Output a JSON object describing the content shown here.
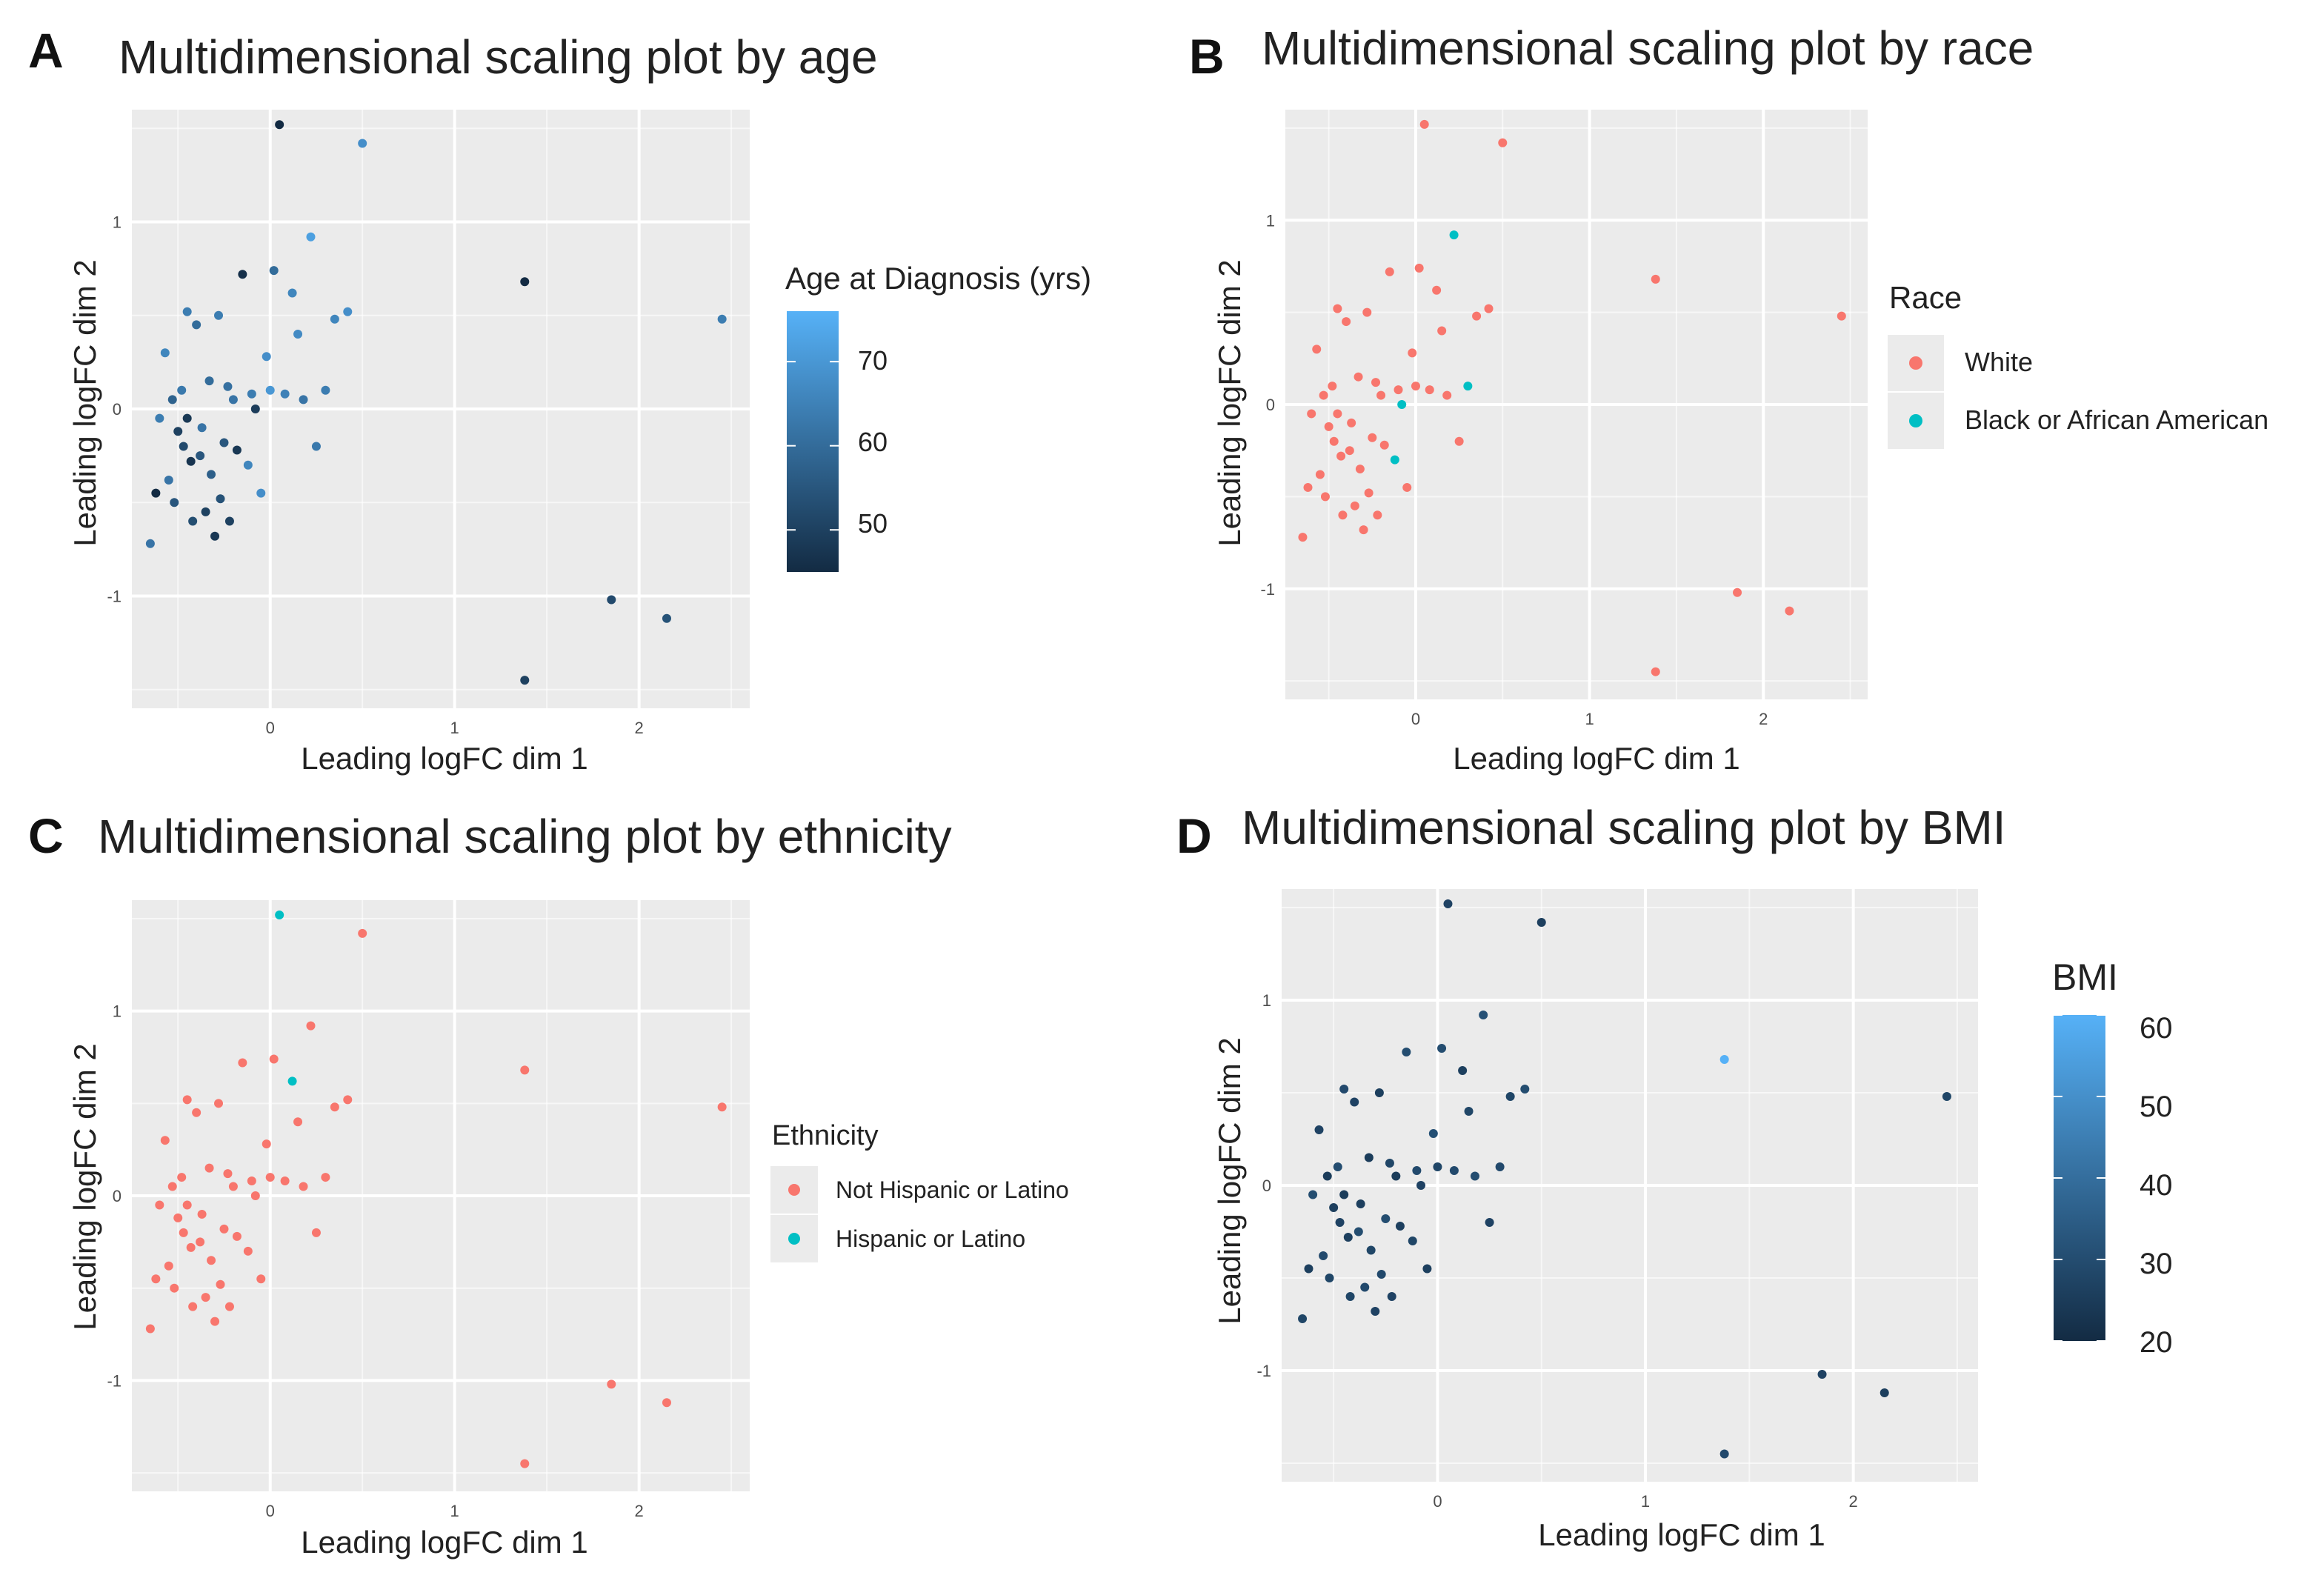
{
  "axis_label_x": "Leading logFC dim 1",
  "axis_label_y": "Leading logFC dim 2",
  "colors": {
    "white": "#f8766d",
    "black": "#00bfc4",
    "grid_bg": "#ebebeb",
    "grid_line": "#ffffff"
  },
  "points": {
    "x": [
      -0.65,
      -0.62,
      -0.6,
      -0.57,
      -0.55,
      -0.53,
      -0.52,
      -0.5,
      -0.48,
      -0.47,
      -0.45,
      -0.45,
      -0.43,
      -0.42,
      -0.4,
      -0.38,
      -0.37,
      -0.35,
      -0.33,
      -0.32,
      -0.3,
      -0.28,
      -0.27,
      -0.25,
      -0.23,
      -0.22,
      -0.2,
      -0.18,
      -0.15,
      -0.12,
      -0.1,
      -0.08,
      -0.05,
      -0.02,
      0.0,
      0.02,
      0.05,
      0.08,
      0.12,
      0.15,
      0.18,
      0.22,
      0.25,
      0.3,
      0.35,
      0.42,
      0.5,
      1.38,
      1.38,
      1.85,
      2.15,
      2.45
    ],
    "y": [
      -0.72,
      -0.45,
      -0.05,
      0.3,
      -0.38,
      0.05,
      -0.5,
      -0.12,
      0.1,
      -0.2,
      -0.05,
      0.52,
      -0.28,
      -0.6,
      0.45,
      -0.25,
      -0.1,
      -0.55,
      0.15,
      -0.35,
      -0.68,
      0.5,
      -0.48,
      -0.18,
      0.12,
      -0.6,
      0.05,
      -0.22,
      0.72,
      -0.3,
      0.08,
      0.0,
      -0.45,
      0.28,
      0.1,
      0.74,
      1.52,
      0.08,
      0.62,
      0.4,
      0.05,
      0.92,
      -0.2,
      0.1,
      0.48,
      0.52,
      1.42,
      -1.45,
      0.68,
      -1.02,
      -1.12,
      0.48
    ]
  },
  "chart_data": [
    {
      "type": "scatter",
      "panel": "A",
      "title": "Multidimensional scaling plot by age",
      "xlabel": "Leading logFC dim 1",
      "ylabel": "Leading logFC dim 2",
      "xlim": [
        -0.75,
        2.6
      ],
      "ylim": [
        -1.6,
        1.6
      ],
      "xticks": [
        0,
        1,
        2
      ],
      "xtick_labels": [
        "0",
        "1",
        "2"
      ],
      "yticks": [
        -1,
        0,
        1
      ],
      "ytick_labels": [
        "-1",
        "0",
        "1"
      ],
      "legend_title": "Age at Diagnosis (yrs)",
      "color_scale": {
        "min": 45,
        "max": 76,
        "ticks": [
          50,
          60,
          70
        ],
        "tick_labels": [
          "50",
          "60",
          "70"
        ],
        "low_color": "#132b43",
        "high_color": "#56b1f7"
      },
      "values": [
        62,
        45,
        64,
        66,
        62,
        58,
        55,
        50,
        63,
        52,
        48,
        64,
        47,
        53,
        60,
        55,
        62,
        50,
        60,
        57,
        48,
        64,
        54,
        55,
        61,
        50,
        62,
        48,
        46,
        66,
        64,
        49,
        68,
        68,
        70,
        60,
        45,
        65,
        66,
        67,
        62,
        72,
        63,
        64,
        66,
        68,
        68,
        50,
        45,
        52,
        54,
        64
      ]
    },
    {
      "type": "scatter",
      "panel": "B",
      "title": "Multidimensional scaling plot by race",
      "xlabel": "Leading logFC dim 1",
      "ylabel": "Leading logFC dim 2",
      "xlim": [
        -0.75,
        2.6
      ],
      "ylim": [
        -1.6,
        1.6
      ],
      "xticks": [
        0,
        1,
        2
      ],
      "xtick_labels": [
        "0",
        "1",
        "2"
      ],
      "yticks": [
        -1,
        0,
        1
      ],
      "ytick_labels": [
        "-1",
        "0",
        "1"
      ],
      "legend_title": "Race",
      "legend": [
        "White",
        "Black or African American"
      ],
      "groups": [
        0,
        0,
        0,
        0,
        0,
        0,
        0,
        0,
        0,
        0,
        0,
        0,
        0,
        0,
        0,
        0,
        0,
        0,
        0,
        0,
        0,
        0,
        0,
        0,
        0,
        0,
        0,
        0,
        0,
        1,
        0,
        1,
        0,
        0,
        0,
        0,
        0,
        0,
        0,
        0,
        0,
        1,
        0,
        1,
        0,
        0,
        0,
        0,
        0,
        0,
        0,
        0
      ]
    },
    {
      "type": "scatter",
      "panel": "C",
      "title": "Multidimensional scaling plot by ethnicity",
      "xlabel": "Leading logFC dim 1",
      "ylabel": "Leading logFC dim 2",
      "xlim": [
        -0.75,
        2.6
      ],
      "ylim": [
        -1.6,
        1.6
      ],
      "xticks": [
        0,
        1,
        2
      ],
      "xtick_labels": [
        "0",
        "1",
        "2"
      ],
      "yticks": [
        -1,
        0,
        1
      ],
      "ytick_labels": [
        "-1",
        "0",
        "1"
      ],
      "legend_title": "Ethnicity",
      "legend": [
        "Not Hispanic or Latino",
        "Hispanic or Latino"
      ],
      "groups": [
        0,
        0,
        0,
        0,
        0,
        0,
        0,
        0,
        0,
        0,
        0,
        0,
        0,
        0,
        0,
        0,
        0,
        0,
        0,
        0,
        0,
        0,
        0,
        0,
        0,
        0,
        0,
        0,
        0,
        0,
        0,
        0,
        0,
        0,
        0,
        0,
        1,
        0,
        1,
        0,
        0,
        0,
        0,
        0,
        0,
        0,
        0,
        0,
        0,
        0,
        0,
        0
      ]
    },
    {
      "type": "scatter",
      "panel": "D",
      "title": "Multidimensional scaling plot by BMI",
      "xlabel": "Leading logFC dim 1",
      "ylabel": "Leading logFC dim 2",
      "xlim": [
        -0.75,
        2.6
      ],
      "ylim": [
        -1.6,
        1.6
      ],
      "xticks": [
        0,
        1,
        2
      ],
      "xtick_labels": [
        "0",
        "1",
        "2"
      ],
      "yticks": [
        -1,
        0,
        1
      ],
      "ytick_labels": [
        "-1",
        "0",
        "1"
      ],
      "legend_title": "BMI",
      "color_scale": {
        "min": 20,
        "max": 60,
        "ticks": [
          20,
          30,
          40,
          50,
          60
        ],
        "tick_labels": [
          "20",
          "30",
          "40",
          "50",
          "60"
        ],
        "low_color": "#132b43",
        "high_color": "#56b1f7"
      },
      "values": [
        28,
        26,
        30,
        27,
        29,
        25,
        28,
        26,
        30,
        27,
        25,
        29,
        26,
        28,
        27,
        30,
        26,
        29,
        25,
        28,
        27,
        26,
        29,
        30,
        28,
        27,
        25,
        26,
        30,
        28,
        29,
        27,
        26,
        31,
        28,
        30,
        27,
        29,
        26,
        28,
        30,
        31,
        27,
        29,
        28,
        30,
        26,
        29,
        62,
        27,
        26,
        28
      ]
    }
  ]
}
